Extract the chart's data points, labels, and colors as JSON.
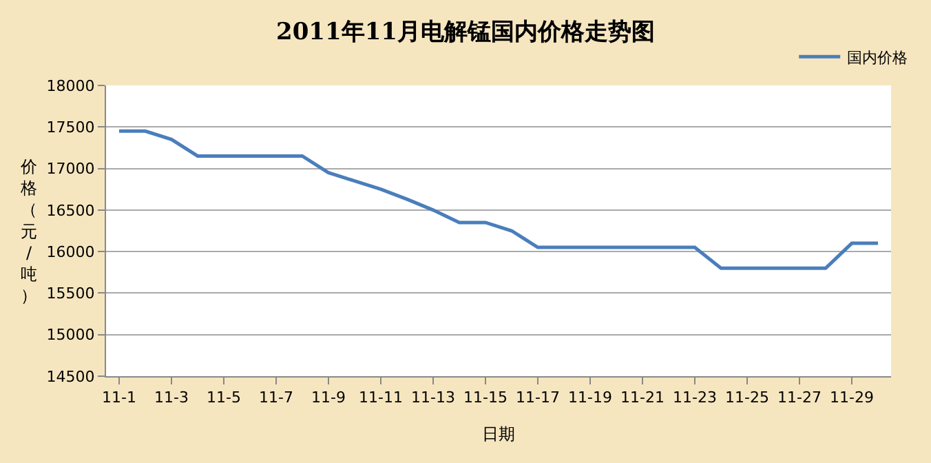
{
  "chart_data": {
    "type": "line",
    "title": "2011年11月电解锰国内价格走势图",
    "xlabel": "日期",
    "ylabel": "价格（元/吨）",
    "categories": [
      "11-1",
      null,
      "11-3",
      null,
      "11-5",
      null,
      "11-7",
      null,
      "11-9",
      null,
      "11-11",
      null,
      "11-13",
      null,
      "11-15",
      null,
      "11-17",
      null,
      "11-19",
      null,
      "11-21",
      null,
      "11-23",
      null,
      "11-25",
      null,
      "11-27",
      null,
      "11-29",
      null
    ],
    "series": [
      {
        "name": "国内价格",
        "color": "#4a7ebb",
        "values": [
          17450,
          17450,
          17350,
          17150,
          17150,
          17150,
          17150,
          17150,
          16950,
          16850,
          16750,
          16630,
          16500,
          16350,
          16350,
          16250,
          16050,
          16050,
          16050,
          16050,
          16050,
          16050,
          16050,
          15800,
          15800,
          15800,
          15800,
          15800,
          16100,
          16100
        ]
      }
    ],
    "ylim": [
      14500,
      18000
    ],
    "yticks": [
      14500,
      15000,
      15500,
      16000,
      16500,
      17000,
      17500,
      18000
    ],
    "grid": "y",
    "legend": "top right",
    "marker": "none",
    "line_style": "solid"
  }
}
